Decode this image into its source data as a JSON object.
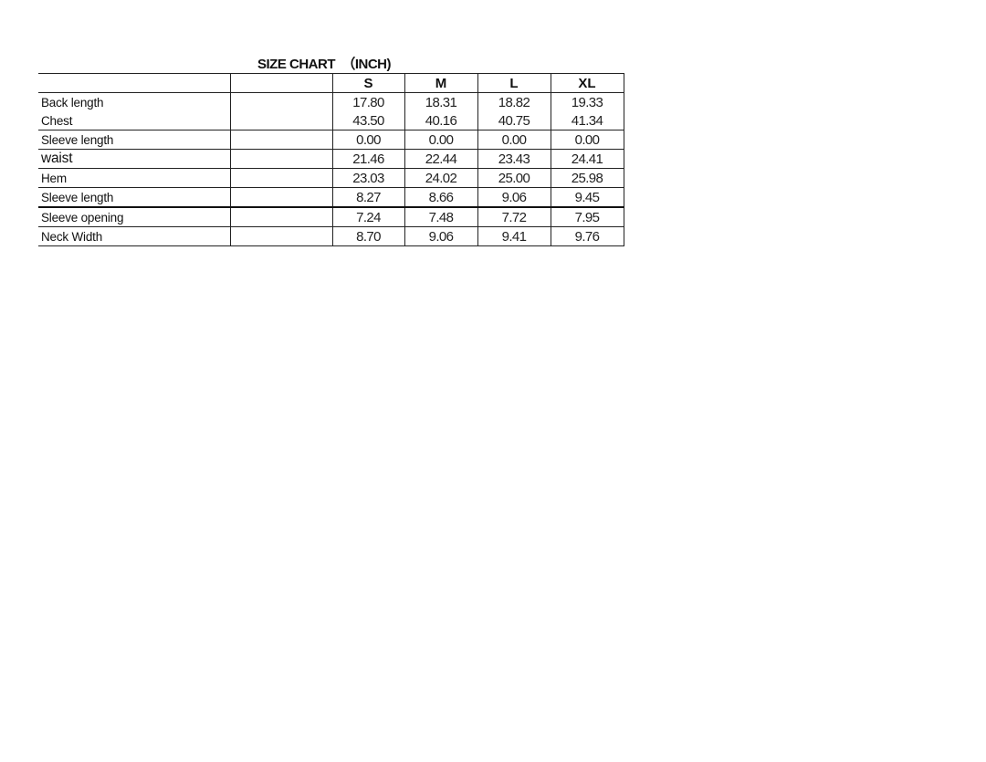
{
  "title": "SIZE CHART  （INCH)",
  "sizes": [
    "S",
    "M",
    "L",
    "XL"
  ],
  "rows": [
    {
      "label": "Back length",
      "values": [
        "17.80",
        "18.31",
        "18.82",
        "19.33"
      ]
    },
    {
      "label": "Chest",
      "values": [
        "43.50",
        "40.16",
        "40.75",
        "41.34"
      ]
    },
    {
      "label": "Sleeve length",
      "values": [
        "0.00",
        "0.00",
        "0.00",
        "0.00"
      ]
    },
    {
      "label": "waist",
      "values": [
        "21.46",
        "22.44",
        "23.43",
        "24.41"
      ]
    },
    {
      "label": "Hem",
      "values": [
        "23.03",
        "24.02",
        "25.00",
        "25.98"
      ]
    },
    {
      "label": "Sleeve length",
      "values": [
        "8.27",
        "8.66",
        "9.06",
        "9.45"
      ]
    },
    {
      "label": "Sleeve opening",
      "values": [
        "7.24",
        "7.48",
        "7.72",
        "7.95"
      ]
    },
    {
      "label": "Neck Width",
      "values": [
        "8.70",
        "9.06",
        "9.41",
        "9.76"
      ]
    }
  ]
}
